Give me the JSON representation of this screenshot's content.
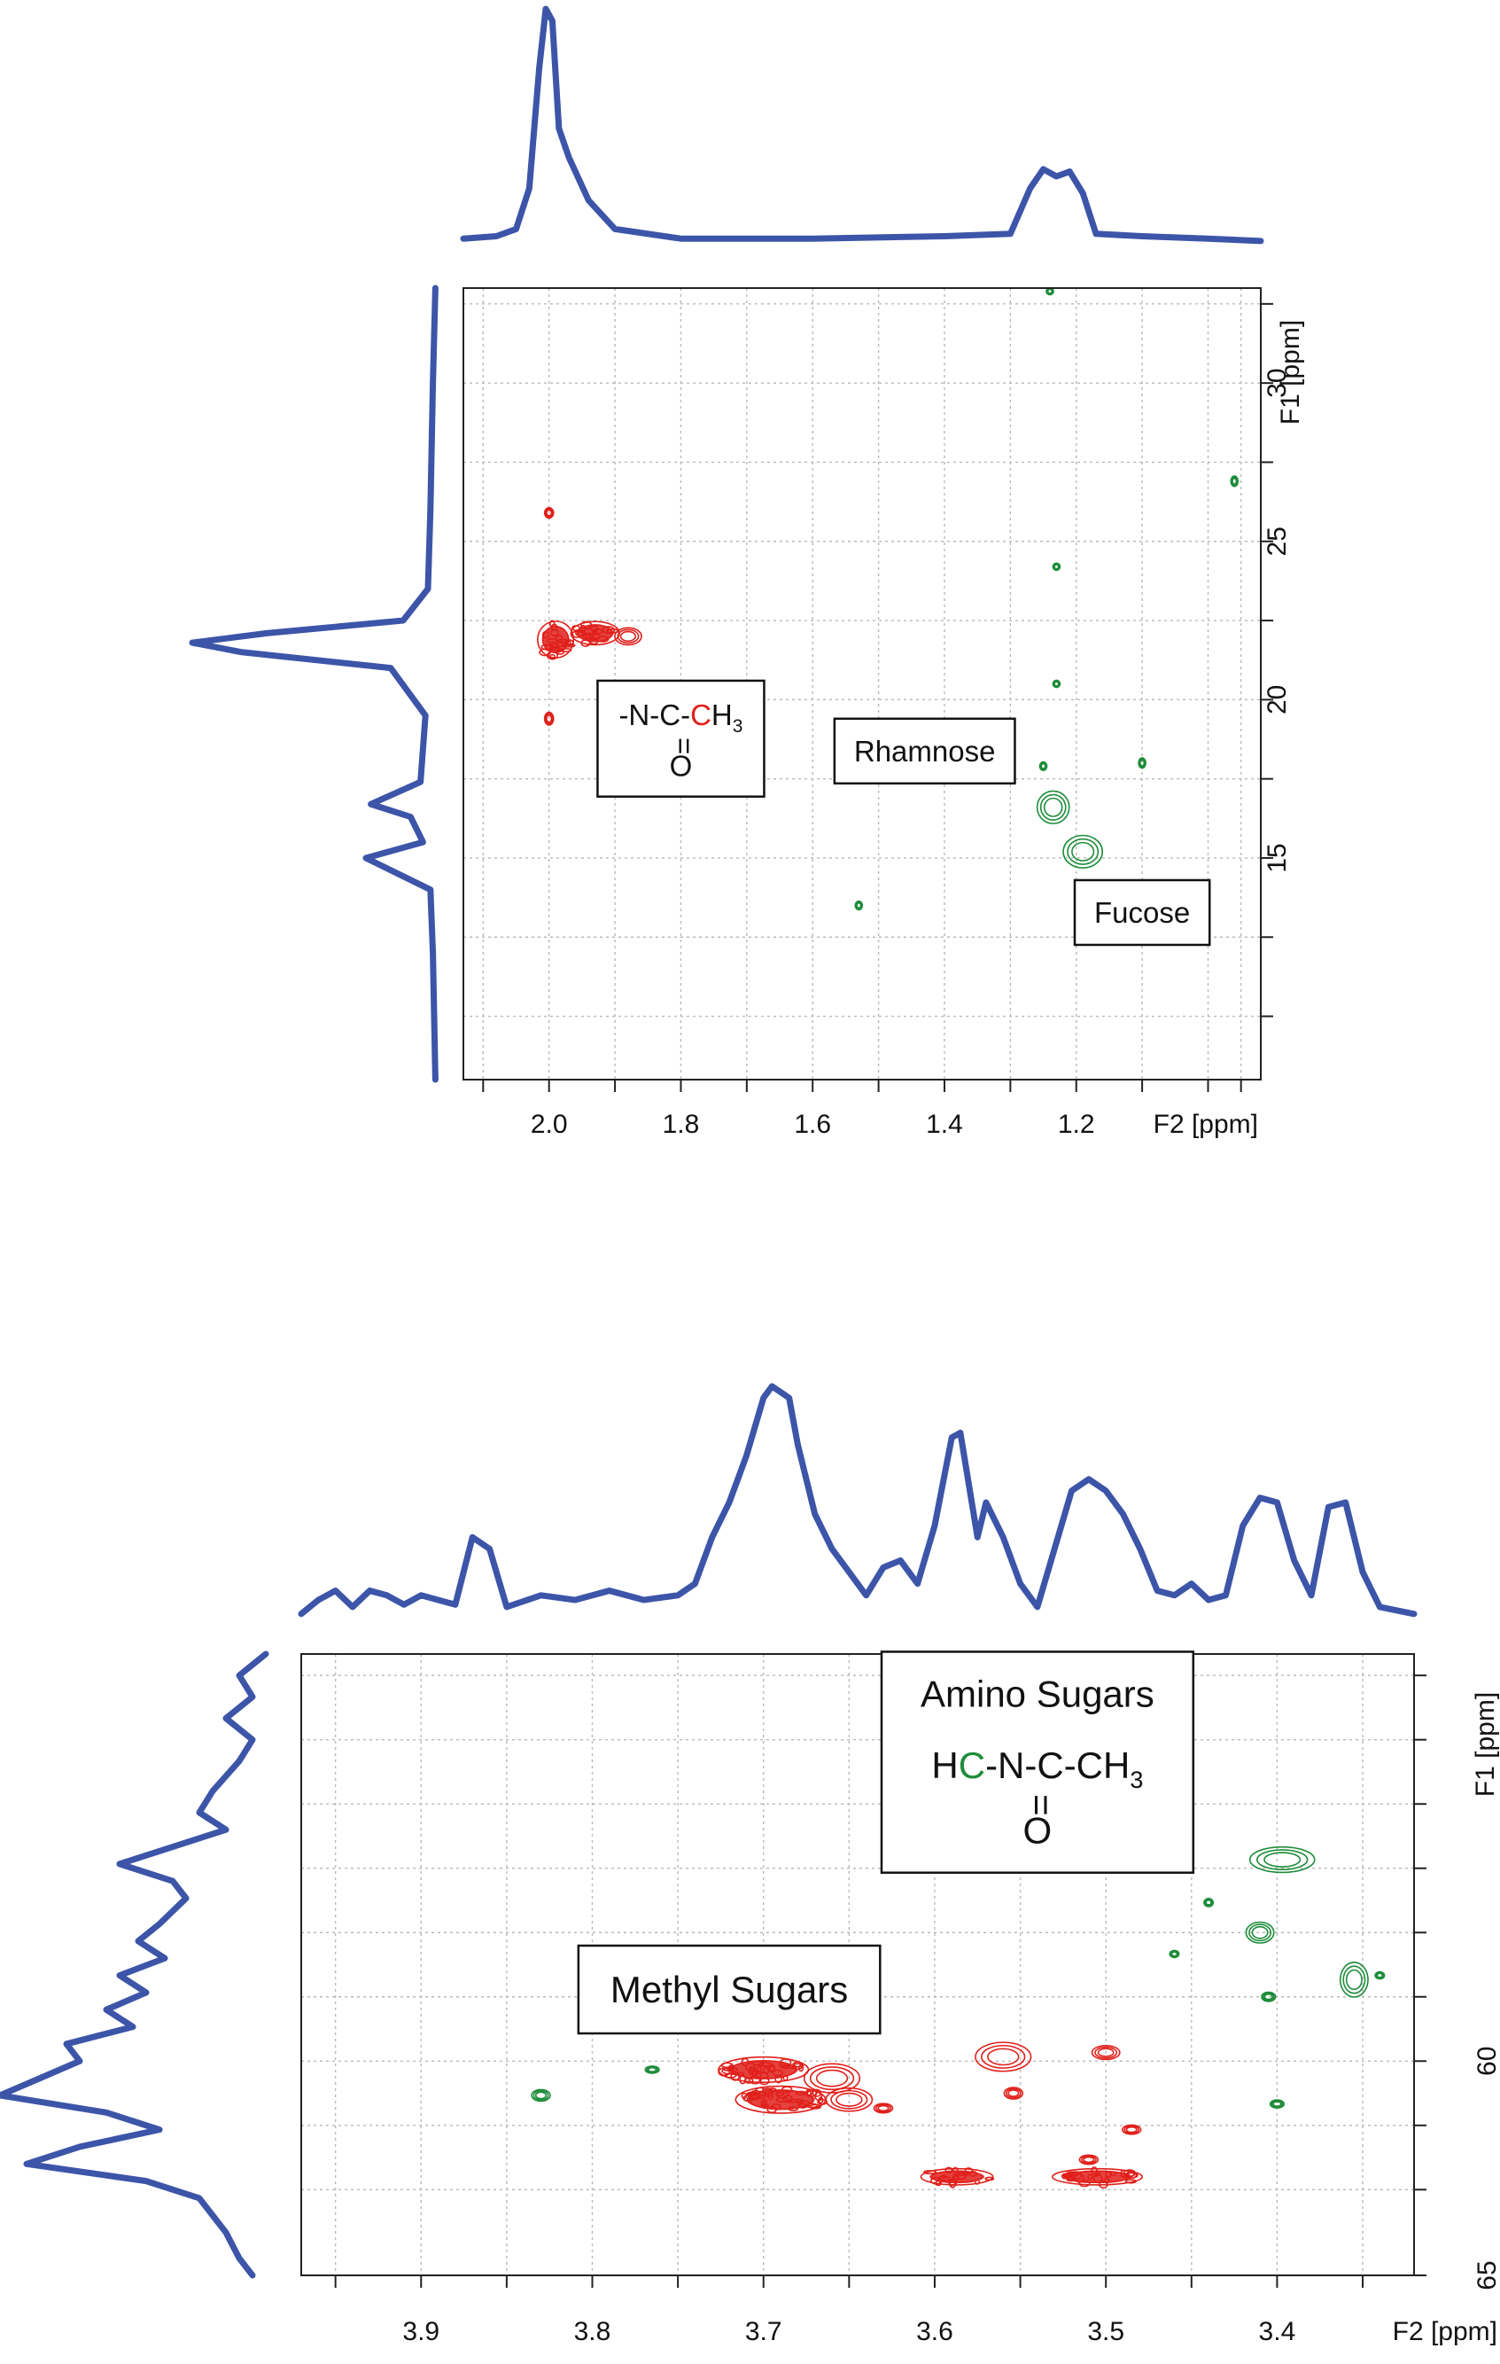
{
  "chart_data": [
    {
      "type": "heatmap",
      "subtype": "2D HSQC NMR contour plot",
      "xlabel": "F2 [ppm]",
      "ylabel": "F1 [ppm]",
      "xlim": [
        2.13,
        0.92
      ],
      "ylim": [
        33,
        8
      ],
      "x_reversed": true,
      "y_reversed": true,
      "x_ticks": [
        "2.0",
        "1.8",
        "1.6",
        "1.4",
        "1.2"
      ],
      "x_tick_values": [
        2.0,
        1.8,
        1.6,
        1.4,
        1.2
      ],
      "x_minor_ticks": [
        2.1,
        1.9,
        1.7,
        1.5,
        1.3,
        1.1,
        1.0,
        0.95
      ],
      "y_ticks": [
        "15",
        "20",
        "25",
        "30"
      ],
      "y_tick_values": [
        15,
        20,
        25,
        30
      ],
      "y_minor_ticks": [
        10,
        12.5,
        17.5,
        22.5,
        27.5,
        32.5
      ],
      "grid": true,
      "annotations": [
        {
          "kind": "formula",
          "line1_parts": [
            [
              "-N-C-",
              "#111111"
            ],
            [
              "C",
              "#e0201b"
            ],
            [
              "H",
              "#111111"
            ]
          ],
          "sub": "3",
          "line2": "=",
          "line3": "O",
          "size": "normal",
          "x": 1.8,
          "y": 19.2
        },
        {
          "kind": "text",
          "text": "Rhamnose",
          "x": 1.43,
          "y": 18.3
        },
        {
          "kind": "text",
          "text": "Fucose",
          "x": 1.1,
          "y": 13.2
        }
      ],
      "peaks": [
        {
          "x": 1.99,
          "y": 21.9,
          "sx": 0.026,
          "sy": 0.55,
          "color": "#e0201b"
        },
        {
          "x": 1.93,
          "y": 22.1,
          "sx": 0.035,
          "sy": 0.35,
          "color": "#e0201b"
        },
        {
          "x": 1.88,
          "y": 22.0,
          "sx": 0.015,
          "sy": 0.2,
          "color": "#e0201b"
        },
        {
          "x": 2.0,
          "y": 19.4,
          "sx": 0.005,
          "sy": 0.15,
          "color": "#e0201b"
        },
        {
          "x": 2.0,
          "y": 25.9,
          "sx": 0.005,
          "sy": 0.12,
          "color": "#e0201b"
        },
        {
          "x": 1.19,
          "y": 15.2,
          "sx": 0.022,
          "sy": 0.38,
          "color": "#1e8c3a"
        },
        {
          "x": 1.235,
          "y": 16.6,
          "sx": 0.018,
          "sy": 0.38,
          "color": "#1e8c3a"
        },
        {
          "x": 1.25,
          "y": 17.9,
          "sx": 0.003,
          "sy": 0.1,
          "color": "#1e8c3a"
        },
        {
          "x": 1.1,
          "y": 18.0,
          "sx": 0.004,
          "sy": 0.12,
          "color": "#1e8c3a"
        },
        {
          "x": 1.53,
          "y": 13.5,
          "sx": 0.003,
          "sy": 0.1,
          "color": "#1e8c3a"
        },
        {
          "x": 1.23,
          "y": 20.5,
          "sx": 0.003,
          "sy": 0.08,
          "color": "#1e8c3a"
        },
        {
          "x": 1.23,
          "y": 24.2,
          "sx": 0.002,
          "sy": 0.06,
          "color": "#1e8c3a"
        },
        {
          "x": 0.96,
          "y": 26.9,
          "sx": 0.003,
          "sy": 0.12,
          "color": "#1e8c3a"
        },
        {
          "x": 1.24,
          "y": 32.9,
          "sx": 0.002,
          "sy": 0.06,
          "color": "#1e8c3a"
        }
      ],
      "projection_top": [
        {
          "x": 2.13,
          "y": 0.04
        },
        {
          "x": 2.08,
          "y": 0.05
        },
        {
          "x": 2.05,
          "y": 0.08
        },
        {
          "x": 2.03,
          "y": 0.25
        },
        {
          "x": 2.015,
          "y": 0.75
        },
        {
          "x": 2.005,
          "y": 1.0
        },
        {
          "x": 1.995,
          "y": 0.95
        },
        {
          "x": 1.985,
          "y": 0.5
        },
        {
          "x": 1.97,
          "y": 0.38
        },
        {
          "x": 1.94,
          "y": 0.2
        },
        {
          "x": 1.9,
          "y": 0.08
        },
        {
          "x": 1.8,
          "y": 0.04
        },
        {
          "x": 1.6,
          "y": 0.04
        },
        {
          "x": 1.4,
          "y": 0.05
        },
        {
          "x": 1.3,
          "y": 0.06
        },
        {
          "x": 1.27,
          "y": 0.25
        },
        {
          "x": 1.25,
          "y": 0.33
        },
        {
          "x": 1.23,
          "y": 0.3
        },
        {
          "x": 1.21,
          "y": 0.32
        },
        {
          "x": 1.19,
          "y": 0.23
        },
        {
          "x": 1.17,
          "y": 0.06
        },
        {
          "x": 1.1,
          "y": 0.05
        },
        {
          "x": 1.0,
          "y": 0.04
        },
        {
          "x": 0.92,
          "y": 0.03
        }
      ],
      "projection_left": [
        {
          "y": 8,
          "v": 0.02
        },
        {
          "y": 12,
          "v": 0.03
        },
        {
          "y": 14,
          "v": 0.04
        },
        {
          "y": 15.0,
          "v": 0.3
        },
        {
          "y": 15.5,
          "v": 0.07
        },
        {
          "y": 16.3,
          "v": 0.12
        },
        {
          "y": 16.7,
          "v": 0.28
        },
        {
          "y": 17.4,
          "v": 0.08
        },
        {
          "y": 19.5,
          "v": 0.06
        },
        {
          "y": 21.0,
          "v": 0.2
        },
        {
          "y": 21.5,
          "v": 0.8
        },
        {
          "y": 21.8,
          "v": 1.0
        },
        {
          "y": 22.1,
          "v": 0.7
        },
        {
          "y": 22.5,
          "v": 0.15
        },
        {
          "y": 23.5,
          "v": 0.05
        },
        {
          "y": 26,
          "v": 0.04
        },
        {
          "y": 30,
          "v": 0.03
        },
        {
          "y": 33,
          "v": 0.02
        }
      ]
    },
    {
      "type": "heatmap",
      "subtype": "2D HSQC NMR contour plot",
      "xlabel": "F2 [ppm]",
      "ylabel": "F1 [ppm]",
      "xlim": [
        3.97,
        3.32
      ],
      "ylim": [
        50.5,
        65
      ],
      "x_reversed": true,
      "y_reversed": true,
      "x_ticks": [
        "3.9",
        "3.8",
        "3.7",
        "3.6",
        "3.5",
        "3.4"
      ],
      "x_tick_values": [
        3.9,
        3.8,
        3.7,
        3.6,
        3.5,
        3.4
      ],
      "x_minor_ticks": [
        3.95,
        3.85,
        3.75,
        3.65,
        3.55,
        3.45,
        3.35
      ],
      "y_ticks": [
        "60",
        "65"
      ],
      "y_tick_values": [
        60,
        65
      ],
      "y_minor_ticks": [
        51,
        52.5,
        54,
        55.5,
        57,
        58.5,
        61.5,
        63
      ],
      "grid": true,
      "annotations": [
        {
          "kind": "text",
          "text": "Amino Sugars",
          "x": 3.54,
          "y": 51.5
        },
        {
          "kind": "formula",
          "line1_parts": [
            [
              "H",
              "#111111"
            ],
            [
              "C",
              "#1e8c3a"
            ],
            [
              "-N-C-CH",
              "#111111"
            ]
          ],
          "sub": "3",
          "line2": "=",
          "line3": "O",
          "size": "big",
          "x": 3.54,
          "y": 53.4
        },
        {
          "kind": "text",
          "text": "Methyl Sugars",
          "x": 3.72,
          "y": 58.4
        }
      ],
      "peaks": [
        {
          "x": 3.7,
          "y": 60.2,
          "sx": 0.025,
          "sy": 0.28,
          "color": "#e0201b"
        },
        {
          "x": 3.69,
          "y": 60.9,
          "sx": 0.025,
          "sy": 0.3,
          "color": "#e0201b"
        },
        {
          "x": 3.66,
          "y": 60.4,
          "sx": 0.012,
          "sy": 0.25,
          "color": "#e0201b"
        },
        {
          "x": 3.65,
          "y": 60.9,
          "sx": 0.01,
          "sy": 0.2,
          "color": "#e0201b"
        },
        {
          "x": 3.56,
          "y": 59.9,
          "sx": 0.012,
          "sy": 0.25,
          "color": "#e0201b"
        },
        {
          "x": 3.5,
          "y": 59.8,
          "sx": 0.006,
          "sy": 0.12,
          "color": "#e0201b"
        },
        {
          "x": 3.587,
          "y": 62.7,
          "sx": 0.02,
          "sy": 0.18,
          "color": "#e0201b"
        },
        {
          "x": 3.505,
          "y": 62.7,
          "sx": 0.025,
          "sy": 0.18,
          "color": "#e0201b"
        },
        {
          "x": 3.554,
          "y": 60.75,
          "sx": 0.004,
          "sy": 0.1,
          "color": "#e0201b"
        },
        {
          "x": 3.63,
          "y": 61.1,
          "sx": 0.004,
          "sy": 0.08,
          "color": "#e0201b"
        },
        {
          "x": 3.51,
          "y": 62.3,
          "sx": 0.004,
          "sy": 0.08,
          "color": "#e0201b"
        },
        {
          "x": 3.485,
          "y": 61.6,
          "sx": 0.004,
          "sy": 0.08,
          "color": "#e0201b"
        },
        {
          "x": 3.397,
          "y": 55.3,
          "sx": 0.014,
          "sy": 0.22,
          "color": "#1e8c3a"
        },
        {
          "x": 3.41,
          "y": 57.0,
          "sx": 0.006,
          "sy": 0.18,
          "color": "#1e8c3a"
        },
        {
          "x": 3.355,
          "y": 58.1,
          "sx": 0.006,
          "sy": 0.3,
          "color": "#1e8c3a"
        },
        {
          "x": 3.405,
          "y": 58.5,
          "sx": 0.003,
          "sy": 0.08,
          "color": "#1e8c3a"
        },
        {
          "x": 3.83,
          "y": 60.8,
          "sx": 0.004,
          "sy": 0.1,
          "color": "#1e8c3a"
        },
        {
          "x": 3.765,
          "y": 60.2,
          "sx": 0.003,
          "sy": 0.06,
          "color": "#1e8c3a"
        },
        {
          "x": 3.44,
          "y": 56.3,
          "sx": 0.002,
          "sy": 0.07,
          "color": "#1e8c3a"
        },
        {
          "x": 3.46,
          "y": 57.5,
          "sx": 0.002,
          "sy": 0.06,
          "color": "#1e8c3a"
        },
        {
          "x": 3.4,
          "y": 61.0,
          "sx": 0.003,
          "sy": 0.07,
          "color": "#1e8c3a"
        },
        {
          "x": 3.34,
          "y": 58.0,
          "sx": 0.002,
          "sy": 0.05,
          "color": "#1e8c3a"
        }
      ],
      "projection_top": [
        {
          "x": 3.97,
          "y": 0.02
        },
        {
          "x": 3.96,
          "y": 0.08
        },
        {
          "x": 3.95,
          "y": 0.12
        },
        {
          "x": 3.94,
          "y": 0.05
        },
        {
          "x": 3.93,
          "y": 0.12
        },
        {
          "x": 3.92,
          "y": 0.1
        },
        {
          "x": 3.91,
          "y": 0.06
        },
        {
          "x": 3.9,
          "y": 0.1
        },
        {
          "x": 3.88,
          "y": 0.06
        },
        {
          "x": 3.87,
          "y": 0.35
        },
        {
          "x": 3.86,
          "y": 0.3
        },
        {
          "x": 3.85,
          "y": 0.05
        },
        {
          "x": 3.83,
          "y": 0.1
        },
        {
          "x": 3.81,
          "y": 0.08
        },
        {
          "x": 3.79,
          "y": 0.12
        },
        {
          "x": 3.77,
          "y": 0.08
        },
        {
          "x": 3.75,
          "y": 0.1
        },
        {
          "x": 3.74,
          "y": 0.15
        },
        {
          "x": 3.73,
          "y": 0.35
        },
        {
          "x": 3.72,
          "y": 0.5
        },
        {
          "x": 3.71,
          "y": 0.7
        },
        {
          "x": 3.7,
          "y": 0.95
        },
        {
          "x": 3.695,
          "y": 1.0
        },
        {
          "x": 3.685,
          "y": 0.95
        },
        {
          "x": 3.68,
          "y": 0.75
        },
        {
          "x": 3.67,
          "y": 0.45
        },
        {
          "x": 3.66,
          "y": 0.3
        },
        {
          "x": 3.65,
          "y": 0.2
        },
        {
          "x": 3.64,
          "y": 0.1
        },
        {
          "x": 3.63,
          "y": 0.22
        },
        {
          "x": 3.62,
          "y": 0.25
        },
        {
          "x": 3.61,
          "y": 0.15
        },
        {
          "x": 3.6,
          "y": 0.4
        },
        {
          "x": 3.59,
          "y": 0.78
        },
        {
          "x": 3.585,
          "y": 0.8
        },
        {
          "x": 3.575,
          "y": 0.35
        },
        {
          "x": 3.57,
          "y": 0.5
        },
        {
          "x": 3.56,
          "y": 0.35
        },
        {
          "x": 3.55,
          "y": 0.15
        },
        {
          "x": 3.54,
          "y": 0.05
        },
        {
          "x": 3.53,
          "y": 0.3
        },
        {
          "x": 3.52,
          "y": 0.55
        },
        {
          "x": 3.51,
          "y": 0.6
        },
        {
          "x": 3.5,
          "y": 0.55
        },
        {
          "x": 3.49,
          "y": 0.45
        },
        {
          "x": 3.48,
          "y": 0.3
        },
        {
          "x": 3.47,
          "y": 0.12
        },
        {
          "x": 3.46,
          "y": 0.1
        },
        {
          "x": 3.45,
          "y": 0.15
        },
        {
          "x": 3.44,
          "y": 0.08
        },
        {
          "x": 3.43,
          "y": 0.1
        },
        {
          "x": 3.42,
          "y": 0.4
        },
        {
          "x": 3.41,
          "y": 0.52
        },
        {
          "x": 3.4,
          "y": 0.5
        },
        {
          "x": 3.39,
          "y": 0.25
        },
        {
          "x": 3.38,
          "y": 0.1
        },
        {
          "x": 3.37,
          "y": 0.48
        },
        {
          "x": 3.36,
          "y": 0.5
        },
        {
          "x": 3.35,
          "y": 0.2
        },
        {
          "x": 3.34,
          "y": 0.05
        },
        {
          "x": 3.32,
          "y": 0.02
        }
      ],
      "projection_left": [
        {
          "y": 50.5,
          "v": 0.0
        },
        {
          "y": 51,
          "v": 0.1
        },
        {
          "y": 51.5,
          "v": 0.05
        },
        {
          "y": 52,
          "v": 0.15
        },
        {
          "y": 52.5,
          "v": 0.05
        },
        {
          "y": 53,
          "v": 0.1
        },
        {
          "y": 53.7,
          "v": 0.2
        },
        {
          "y": 54.2,
          "v": 0.25
        },
        {
          "y": 54.6,
          "v": 0.15
        },
        {
          "y": 55,
          "v": 0.35
        },
        {
          "y": 55.4,
          "v": 0.55
        },
        {
          "y": 55.8,
          "v": 0.35
        },
        {
          "y": 56.2,
          "v": 0.3
        },
        {
          "y": 56.8,
          "v": 0.4
        },
        {
          "y": 57.2,
          "v": 0.48
        },
        {
          "y": 57.6,
          "v": 0.38
        },
        {
          "y": 58.0,
          "v": 0.55
        },
        {
          "y": 58.4,
          "v": 0.45
        },
        {
          "y": 58.8,
          "v": 0.6
        },
        {
          "y": 59.2,
          "v": 0.5
        },
        {
          "y": 59.6,
          "v": 0.75
        },
        {
          "y": 60.0,
          "v": 0.7
        },
        {
          "y": 60.4,
          "v": 0.85
        },
        {
          "y": 60.8,
          "v": 1.0
        },
        {
          "y": 61.2,
          "v": 0.6
        },
        {
          "y": 61.6,
          "v": 0.4
        },
        {
          "y": 62.0,
          "v": 0.7
        },
        {
          "y": 62.4,
          "v": 0.9
        },
        {
          "y": 62.8,
          "v": 0.45
        },
        {
          "y": 63.2,
          "v": 0.25
        },
        {
          "y": 63.6,
          "v": 0.2
        },
        {
          "y": 64.0,
          "v": 0.15
        },
        {
          "y": 64.6,
          "v": 0.1
        },
        {
          "y": 65,
          "v": 0.05
        }
      ]
    }
  ]
}
